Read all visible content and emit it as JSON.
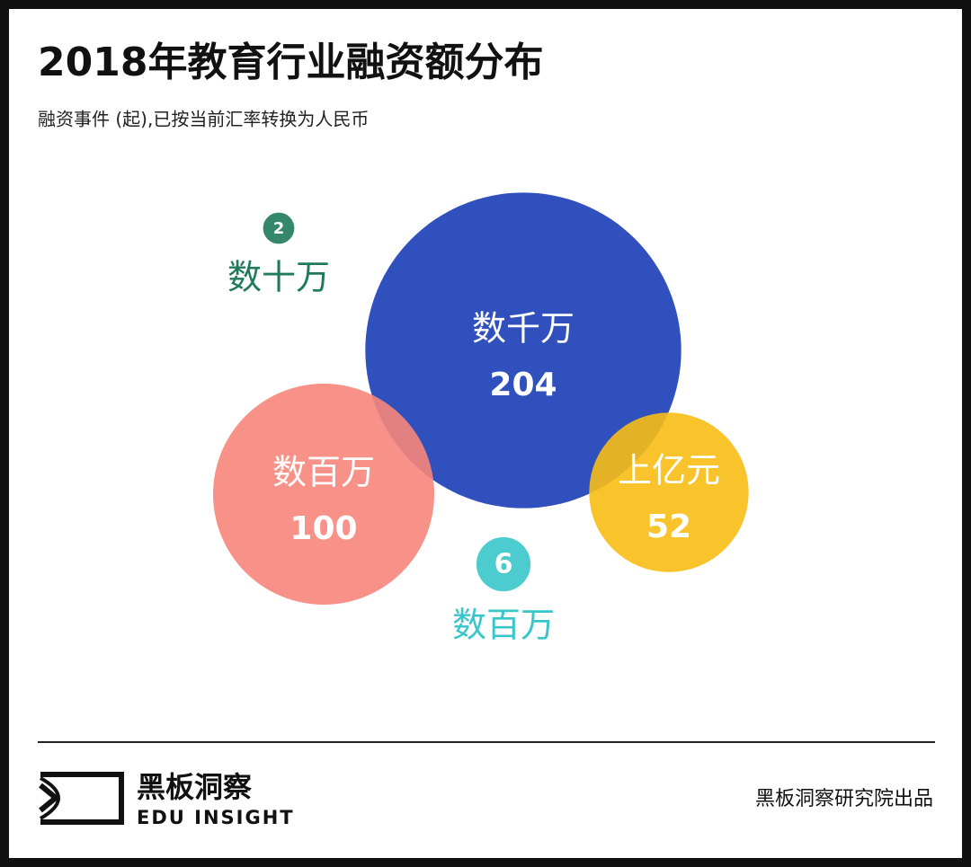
{
  "chart_data": {
    "type": "bubble",
    "title": "2018年教育行业融资额分布",
    "subtitle": "融资事件 (起),已按当前汇率转换为人民币",
    "series": [
      {
        "name": "数千万",
        "color": "#2f50bd",
        "values": [
          204
        ]
      },
      {
        "name": "数百万",
        "color": "#f7867b",
        "values": [
          100
        ]
      },
      {
        "name": "上亿元",
        "color": "#f8bc15",
        "values": [
          52
        ]
      },
      {
        "name": "数十万",
        "color": "#1f7a5c",
        "values": [
          2
        ]
      },
      {
        "name": "数百万",
        "color": "#38c6c9",
        "values": [
          6
        ]
      }
    ]
  },
  "footer": {
    "brand": "黑板洞察",
    "brand_en": "EDU INSIGHT",
    "credit": "黑板洞察研究院出品"
  }
}
